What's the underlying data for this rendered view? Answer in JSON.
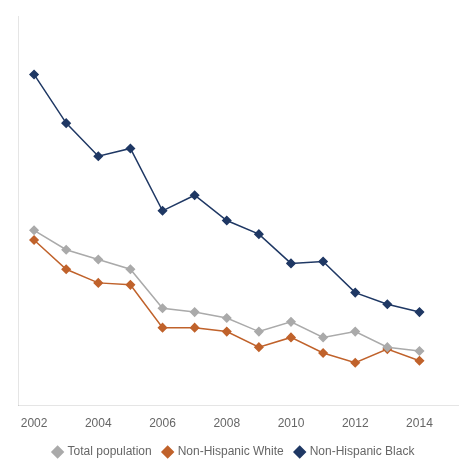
{
  "chart_data": {
    "type": "line",
    "x": [
      2002,
      2003,
      2004,
      2005,
      2006,
      2007,
      2008,
      2009,
      2010,
      2011,
      2012,
      2013,
      2014
    ],
    "series": [
      {
        "name": "Total population",
        "color": "#aaaaaa",
        "marker": "diamond",
        "values": [
          310,
          300,
          295,
          290,
          270,
          268,
          265,
          258,
          263,
          255,
          258,
          250,
          248
        ]
      },
      {
        "name": "Non-Hispanic White",
        "color": "#c0622b",
        "marker": "diamond",
        "values": [
          305,
          290,
          283,
          282,
          260,
          260,
          258,
          250,
          255,
          247,
          242,
          249,
          243
        ]
      },
      {
        "name": "Non-Hispanic Black",
        "color": "#1f3864",
        "marker": "diamond",
        "values": [
          390,
          365,
          348,
          352,
          320,
          328,
          315,
          308,
          293,
          294,
          278,
          272,
          268
        ]
      }
    ],
    "xlim": [
      2001.5,
      2015.2
    ],
    "xticks": [
      2002,
      2004,
      2006,
      2008,
      2010,
      2012,
      2014
    ],
    "ylim": [
      220,
      420
    ],
    "yticks": [],
    "grid": false,
    "tick_labels": "x",
    "legend": "bottom"
  }
}
